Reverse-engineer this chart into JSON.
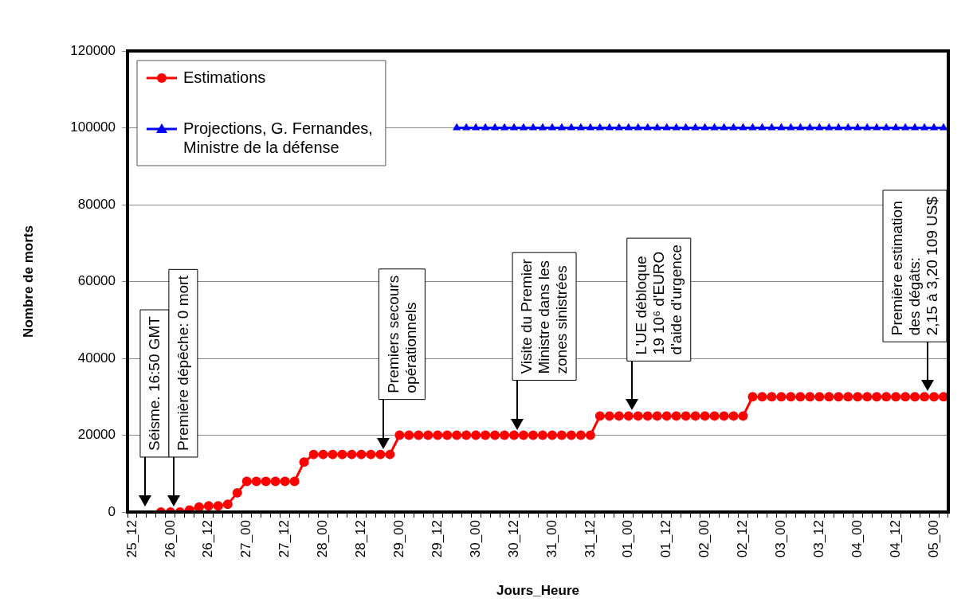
{
  "chart_data": {
    "type": "line",
    "xlabel": "Jours_Heure",
    "ylabel": "Nombre de morts",
    "categories": [
      "25_12",
      null,
      null,
      null,
      "26_00",
      null,
      null,
      null,
      "26_12",
      null,
      null,
      null,
      "27_00",
      null,
      null,
      null,
      "27_12",
      null,
      null,
      null,
      "28_00",
      null,
      null,
      null,
      "28_12",
      null,
      null,
      null,
      "29_00",
      null,
      null,
      null,
      "29_12",
      null,
      null,
      null,
      "30_00",
      null,
      null,
      null,
      "30_12",
      null,
      null,
      null,
      "31_00",
      null,
      null,
      null,
      "31_12",
      null,
      null,
      null,
      "01_00",
      null,
      null,
      null,
      "01_12",
      null,
      null,
      null,
      "02_00",
      null,
      null,
      null,
      "02_12",
      null,
      null,
      null,
      "03_00",
      null,
      null,
      null,
      "03_12",
      null,
      null,
      null,
      "04_00",
      null,
      null,
      null,
      "04_12",
      null,
      null,
      null,
      "05_00",
      null
    ],
    "ylim": [
      0,
      120000
    ],
    "yticks": [
      0,
      20000,
      40000,
      60000,
      80000,
      100000,
      120000
    ],
    "grid": "y",
    "legend": "top left",
    "line_style": "solid",
    "series": [
      {
        "name": "Estimations",
        "color": "#ff0000",
        "marker": "circle",
        "values": [
          null,
          null,
          null,
          0,
          0,
          0,
          500,
          1300,
          1600,
          1600,
          2000,
          5000,
          8000,
          8000,
          8000,
          8000,
          8000,
          8000,
          13000,
          15000,
          15000,
          15000,
          15000,
          15000,
          15000,
          15000,
          15000,
          15000,
          20000,
          20000,
          20000,
          20000,
          20000,
          20000,
          20000,
          20000,
          20000,
          20000,
          20000,
          20000,
          20000,
          20000,
          20000,
          20000,
          20000,
          20000,
          20000,
          20000,
          20000,
          25000,
          25000,
          25000,
          25000,
          25000,
          25000,
          25000,
          25000,
          25000,
          25000,
          25000,
          25000,
          25000,
          25000,
          25000,
          25000,
          30000,
          30000,
          30000,
          30000,
          30000,
          30000,
          30000,
          30000,
          30000,
          30000,
          30000,
          30000,
          30000,
          30000,
          30000,
          30000,
          30000,
          30000,
          30000,
          30000,
          30000
        ]
      },
      {
        "name": "Projections, G. Fernandes, Ministre de la défense",
        "color": "#0000ff",
        "marker": "triangle",
        "values": [
          null,
          null,
          null,
          null,
          null,
          null,
          null,
          null,
          null,
          null,
          null,
          null,
          null,
          null,
          null,
          null,
          null,
          null,
          null,
          null,
          null,
          null,
          null,
          null,
          null,
          null,
          null,
          null,
          null,
          null,
          null,
          null,
          null,
          null,
          100000,
          100000,
          100000,
          100000,
          100000,
          100000,
          100000,
          100000,
          100000,
          100000,
          100000,
          100000,
          100000,
          100000,
          100000,
          100000,
          100000,
          100000,
          100000,
          100000,
          100000,
          100000,
          100000,
          100000,
          100000,
          100000,
          100000,
          100000,
          100000,
          100000,
          100000,
          100000,
          100000,
          100000,
          100000,
          100000,
          100000,
          100000,
          100000,
          100000,
          100000,
          100000,
          100000,
          100000,
          100000,
          100000,
          100000,
          100000,
          100000,
          100000,
          100000,
          100000
        ]
      }
    ],
    "annotations": [
      "Séisme. 16:50 GMT",
      "Première dépêche: 0 mort",
      "Premiers secours\nopérationnels",
      "Visite du Premier\nMinistre dans les\nzones sinistrées",
      "L'UE débloque\n19 10⁶ d'EURO\nd'aide d'urgence",
      "Première estimation\ndes dégâts:\n2,15 à 3,20 109 US$"
    ]
  }
}
